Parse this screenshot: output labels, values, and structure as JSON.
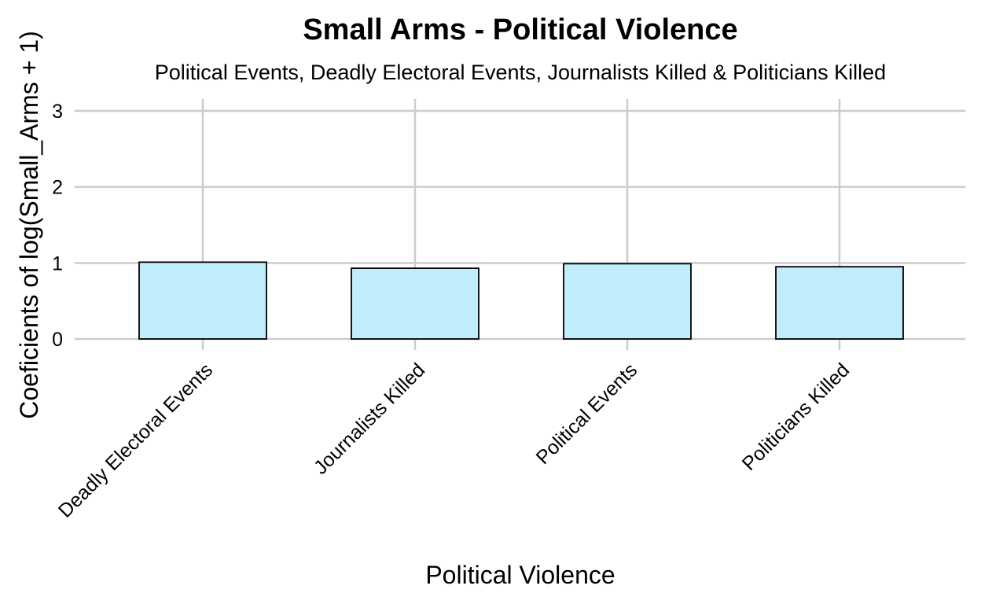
{
  "chart_data": {
    "type": "bar",
    "title": "Small Arms - Political Violence",
    "subtitle": "Political Events, Deadly Electoral Events, Journalists Killed & Politicians Killed",
    "xlabel": "Political Violence",
    "ylabel": "Coeficients of log(Small_Arms + 1)",
    "categories": [
      "Deadly Electoral Events",
      "Journalists Killed",
      "Political Events",
      "Politicians Killed"
    ],
    "values": [
      1.01,
      0.93,
      0.99,
      0.95
    ],
    "ylim": [
      0,
      3
    ],
    "yticks": [
      "0",
      "1",
      "2",
      "3"
    ],
    "grid": true,
    "bar_color": "#c0ecfc",
    "bar_outline": "#000000",
    "grid_color": "#cccccc"
  }
}
